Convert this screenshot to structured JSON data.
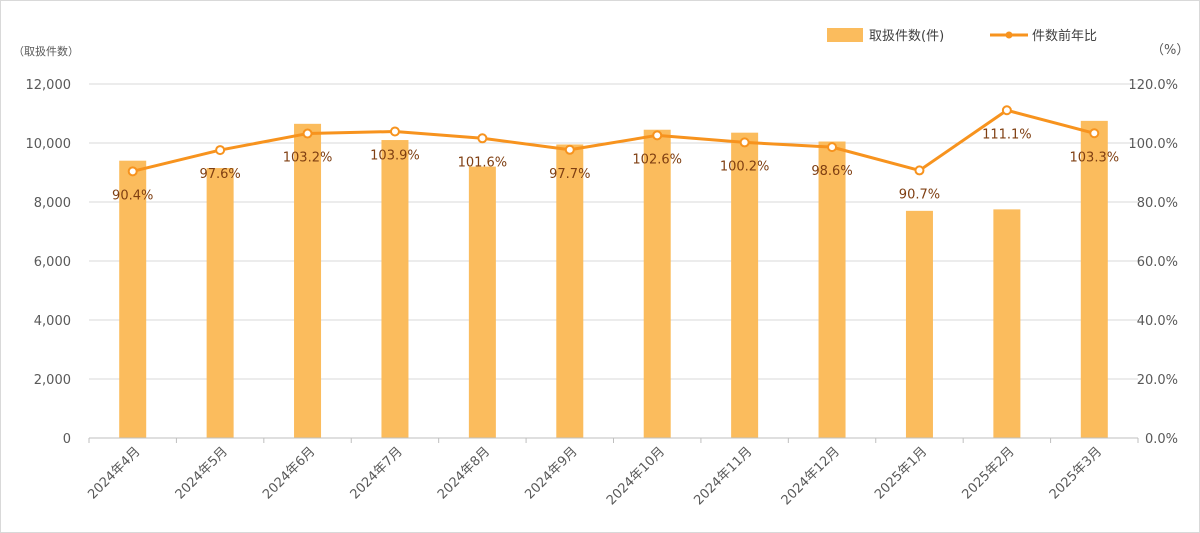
{
  "chart_data": {
    "type": "bar",
    "categories": [
      "2024年4月",
      "2024年5月",
      "2024年6月",
      "2024年7月",
      "2024年8月",
      "2024年9月",
      "2024年10月",
      "2024年11月",
      "2024年12月",
      "2025年1月",
      "2025年2月",
      "2025年3月"
    ],
    "series": [
      {
        "name": "取扱件数(件)",
        "type": "bar",
        "axis": "left",
        "color": "#fbbc5d",
        "values": [
          9400,
          9150,
          10650,
          10100,
          9200,
          9950,
          10450,
          10350,
          10050,
          7700,
          7750,
          10750
        ]
      },
      {
        "name": "件数前年比",
        "type": "line",
        "axis": "right",
        "color": "#f7931e",
        "values": [
          90.4,
          97.6,
          103.2,
          103.9,
          101.6,
          97.7,
          102.6,
          100.2,
          98.6,
          90.7,
          111.1,
          103.3
        ],
        "labels": [
          "90.4%",
          "97.6%",
          "103.2%",
          "103.9%",
          "101.6%",
          "97.7%",
          "102.6%",
          "100.2%",
          "98.6%",
          "90.7%",
          "111.1%",
          "103.3%"
        ]
      }
    ],
    "left_axis": {
      "unit_label": "（取扱件数）",
      "ylim": [
        0,
        12000
      ],
      "ticks": [
        0,
        2000,
        4000,
        6000,
        8000,
        10000,
        12000
      ],
      "tick_labels": [
        "0",
        "2,000",
        "4,000",
        "6,000",
        "8,000",
        "10,000",
        "12,000"
      ]
    },
    "right_axis": {
      "unit_label": "（%）",
      "ylim": [
        0,
        120
      ],
      "ticks": [
        0,
        20,
        40,
        60,
        80,
        100,
        120
      ],
      "tick_labels": [
        "0.0%",
        "20.0%",
        "40.0%",
        "60.0%",
        "80.0%",
        "100.0%",
        "120.0%"
      ]
    },
    "grid": true,
    "legend_position": "top-right"
  }
}
